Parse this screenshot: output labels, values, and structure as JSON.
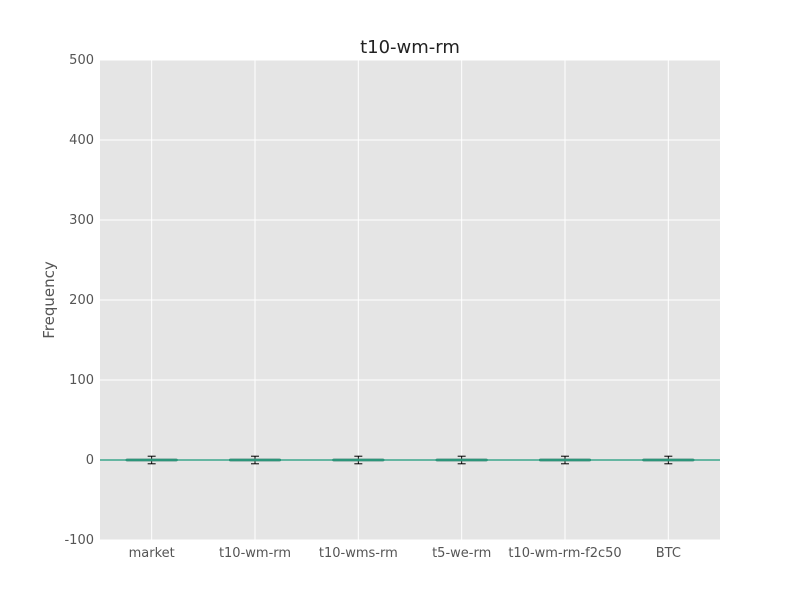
{
  "chart_data": {
    "type": "box",
    "title": "t10-wm-rm",
    "xlabel": "",
    "ylabel": "Frequency",
    "ylim": [
      -100,
      500
    ],
    "yticks": [
      -100,
      0,
      100,
      200,
      300,
      400,
      500
    ],
    "grid": true,
    "categories": [
      "market",
      "t10-wm-rm",
      "t10-wms-rm",
      "t5-we-rm",
      "t10-wm-rm-f2c50",
      "BTC"
    ],
    "boxes": [
      {
        "category": "market",
        "whisker_low": -1,
        "q1": 0,
        "median": 0,
        "q3": 0,
        "whisker_high": 1
      },
      {
        "category": "t10-wm-rm",
        "whisker_low": -1,
        "q1": 0,
        "median": 0,
        "q3": 0,
        "whisker_high": 1
      },
      {
        "category": "t10-wms-rm",
        "whisker_low": -1,
        "q1": 0,
        "median": 0,
        "q3": 0,
        "whisker_high": 1
      },
      {
        "category": "t5-we-rm",
        "whisker_low": -1,
        "q1": 0,
        "median": 0,
        "q3": 0,
        "whisker_high": 1
      },
      {
        "category": "t10-wm-rm-f2c50",
        "whisker_low": -1,
        "q1": 0,
        "median": 0,
        "q3": 0,
        "whisker_high": 1
      },
      {
        "category": "BTC",
        "whisker_low": -1,
        "q1": 0,
        "median": 0,
        "q3": 0,
        "whisker_high": 1
      }
    ],
    "reference_line": {
      "y": 0
    },
    "colors": {
      "plot_background": "#e5e5e5",
      "grid": "#ffffff",
      "box": "#4c8c7a",
      "whisker": "#000000",
      "reference_line": "#1a9a7a"
    }
  }
}
